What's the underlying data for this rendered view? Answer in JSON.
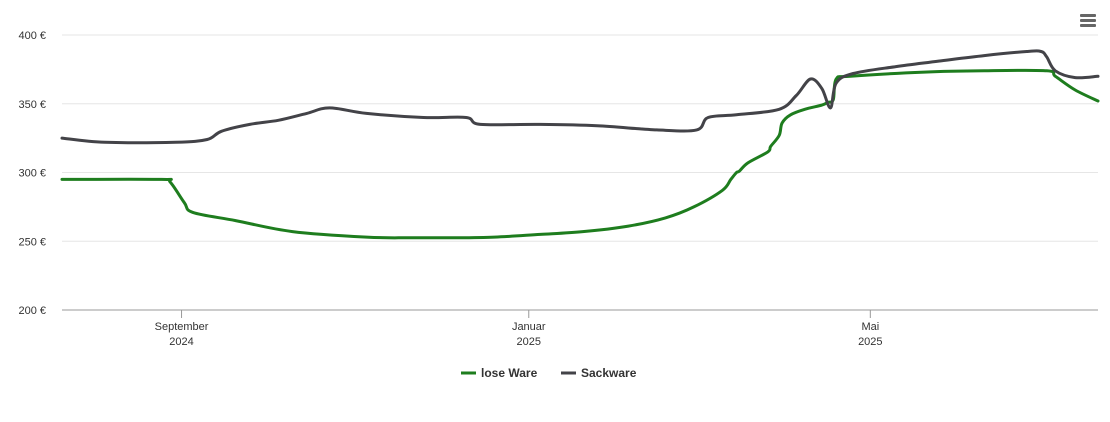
{
  "chart_data": {
    "type": "line",
    "title": "",
    "xlabel": "",
    "ylabel": "",
    "ylim": [
      200,
      400
    ],
    "y_ticks": [
      "400 €",
      "350 €",
      "300 €",
      "250 €",
      "200 €"
    ],
    "y_tick_values": [
      400,
      350,
      300,
      250,
      200
    ],
    "x_ticks": [
      {
        "date": "2024-09-01",
        "month": "September",
        "year": "2024"
      },
      {
        "date": "2025-01-01",
        "month": "Januar",
        "year": "2025"
      },
      {
        "date": "2025-05-01",
        "month": "Mai",
        "year": "2025"
      }
    ],
    "xlim": [
      "2024-07-21",
      "2025-07-20"
    ],
    "grid": true,
    "legend_position": "bottom-center",
    "series": [
      {
        "name": "lose Ware",
        "color": "#1e7d1e",
        "points": [
          [
            "2024-07-21",
            295
          ],
          [
            "2024-08-25",
            295
          ],
          [
            "2024-08-28",
            293
          ],
          [
            "2024-09-02",
            278
          ],
          [
            "2024-09-05",
            271
          ],
          [
            "2024-09-20",
            265
          ],
          [
            "2024-10-10",
            257
          ],
          [
            "2024-11-05",
            253
          ],
          [
            "2024-11-20",
            252.5
          ],
          [
            "2024-12-05",
            252.5
          ],
          [
            "2024-12-20",
            253
          ],
          [
            "2025-01-05",
            255
          ],
          [
            "2025-01-20",
            257
          ],
          [
            "2025-02-05",
            261
          ],
          [
            "2025-02-18",
            267
          ],
          [
            "2025-02-28",
            275
          ],
          [
            "2025-03-10",
            287
          ],
          [
            "2025-03-13",
            295
          ],
          [
            "2025-03-15",
            300
          ],
          [
            "2025-03-16",
            301
          ],
          [
            "2025-03-19",
            307
          ],
          [
            "2025-03-26",
            315
          ],
          [
            "2025-03-27",
            319
          ],
          [
            "2025-03-30",
            327
          ],
          [
            "2025-03-31",
            336
          ],
          [
            "2025-04-03",
            342
          ],
          [
            "2025-04-08",
            346
          ],
          [
            "2025-04-14",
            349
          ],
          [
            "2025-04-16",
            351
          ],
          [
            "2025-04-18",
            353
          ],
          [
            "2025-04-19",
            368
          ],
          [
            "2025-04-24",
            370
          ],
          [
            "2025-05-20",
            373
          ],
          [
            "2025-06-10",
            374
          ],
          [
            "2025-07-02",
            374
          ],
          [
            "2025-07-05",
            370
          ],
          [
            "2025-07-12",
            360
          ],
          [
            "2025-07-20",
            352
          ]
        ]
      },
      {
        "name": "Sackware",
        "color": "#434348",
        "points": [
          [
            "2024-07-21",
            325
          ],
          [
            "2024-08-05",
            322
          ],
          [
            "2024-08-30",
            322
          ],
          [
            "2024-09-10",
            324
          ],
          [
            "2024-09-15",
            330
          ],
          [
            "2024-09-25",
            335
          ],
          [
            "2024-10-05",
            338
          ],
          [
            "2024-10-15",
            343
          ],
          [
            "2024-10-23",
            347
          ],
          [
            "2024-11-05",
            343
          ],
          [
            "2024-11-25",
            340
          ],
          [
            "2024-12-10",
            340
          ],
          [
            "2024-12-15",
            335
          ],
          [
            "2025-01-05",
            335
          ],
          [
            "2025-01-25",
            334
          ],
          [
            "2025-02-15",
            331
          ],
          [
            "2025-03-01",
            331
          ],
          [
            "2025-03-05",
            340
          ],
          [
            "2025-03-15",
            342
          ],
          [
            "2025-03-30",
            346
          ],
          [
            "2025-04-05",
            356
          ],
          [
            "2025-04-10",
            368
          ],
          [
            "2025-04-14",
            361
          ],
          [
            "2025-04-17",
            347
          ],
          [
            "2025-04-19",
            365
          ],
          [
            "2025-04-25",
            372
          ],
          [
            "2025-05-10",
            377
          ],
          [
            "2025-05-25",
            381
          ],
          [
            "2025-06-10",
            385
          ],
          [
            "2025-06-25",
            388
          ],
          [
            "2025-06-30",
            388
          ],
          [
            "2025-07-02",
            384
          ],
          [
            "2025-07-05",
            374
          ],
          [
            "2025-07-12",
            369
          ],
          [
            "2025-07-20",
            370
          ]
        ]
      }
    ]
  },
  "toolbar": {
    "menu_icon": "hamburger-menu-icon"
  }
}
